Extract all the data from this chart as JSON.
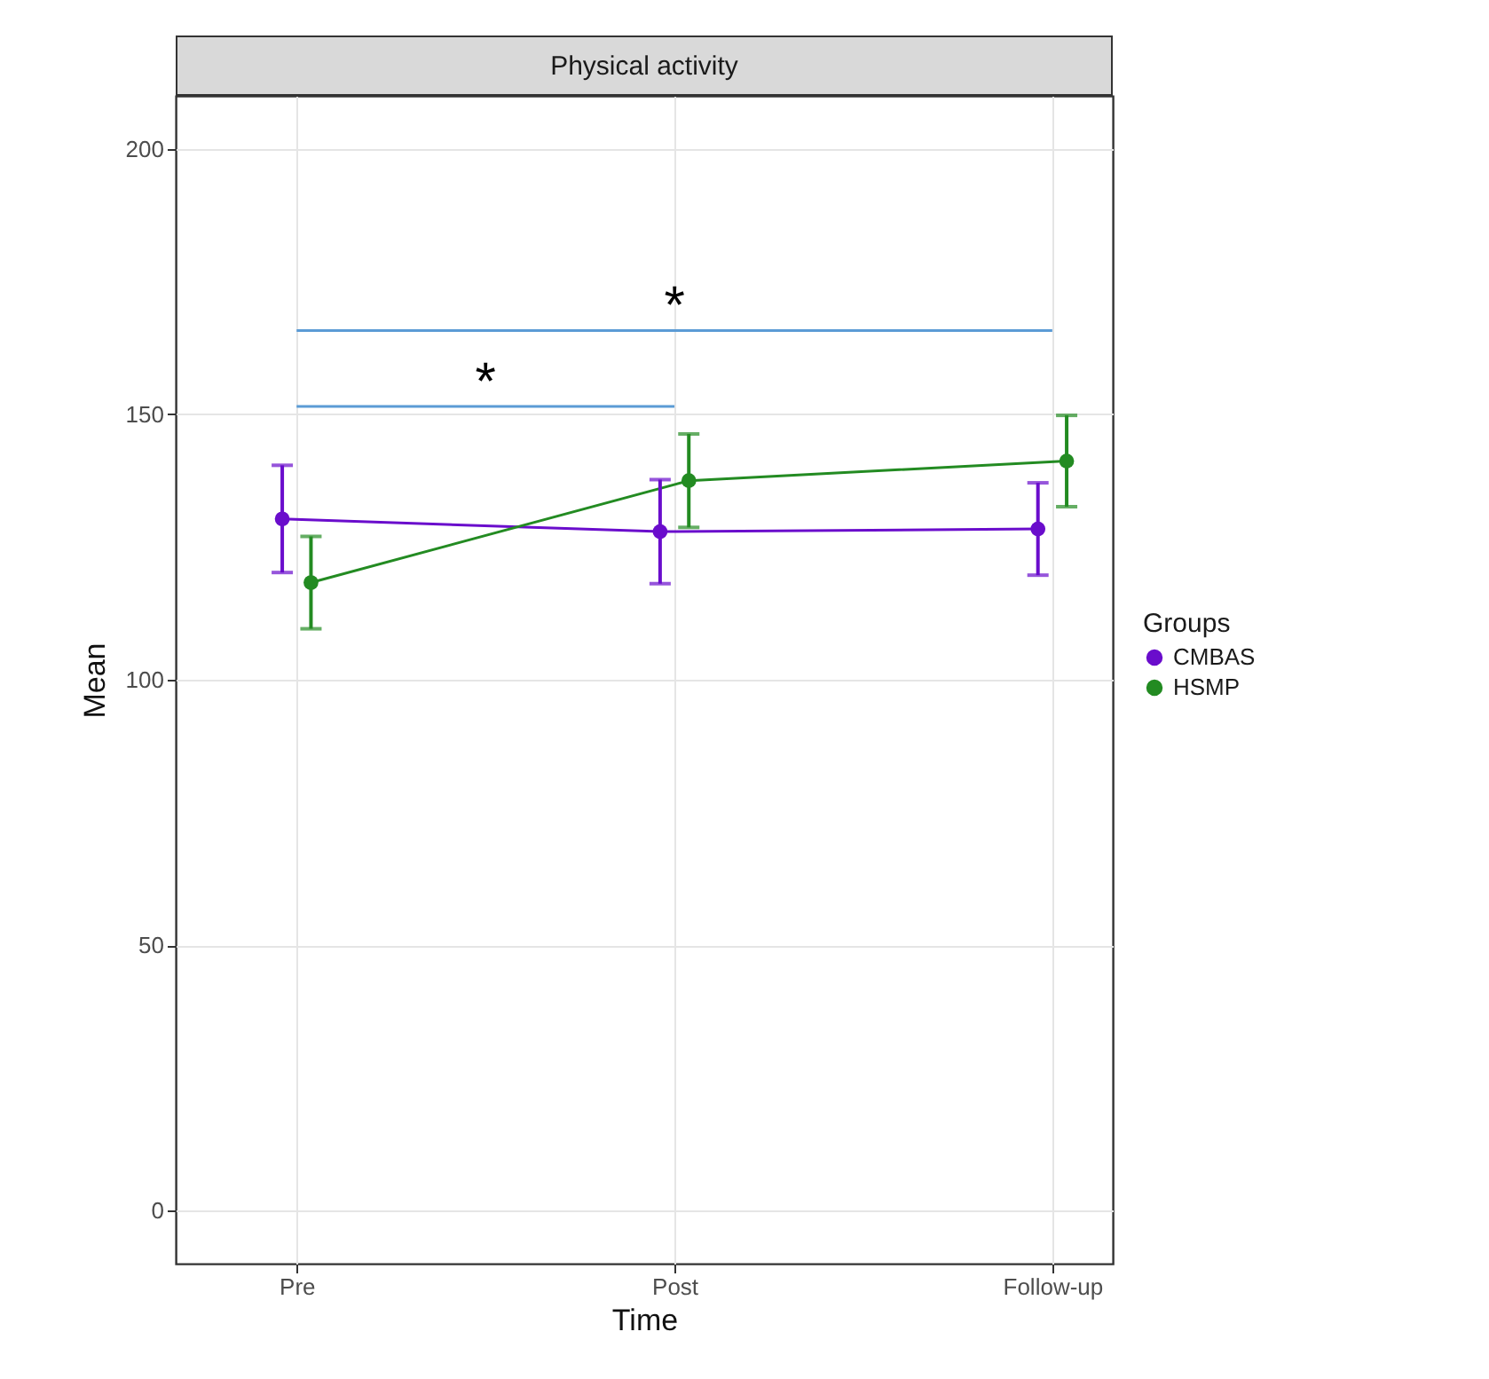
{
  "chart_data": {
    "type": "line",
    "title": "Physical activity",
    "xlabel": "Time",
    "ylabel": "Mean",
    "legend_title": "Groups",
    "categories": [
      "Pre",
      "Post",
      "Follow-up"
    ],
    "series": [
      {
        "name": "CMBAS",
        "color": "#6a0dcc",
        "values": [
          130.3,
          127.9,
          128.4
        ],
        "errors": [
          10.1,
          9.8,
          8.7
        ]
      },
      {
        "name": "HSMP",
        "color": "#238b22",
        "values": [
          118.3,
          137.5,
          141.2
        ],
        "errors": [
          8.7,
          8.8,
          8.6
        ]
      },
      {
        "color": "#5b9bd5",
        "marker": "none",
        "values": [
          165.8,
          165.8,
          165.8
        ]
      },
      {
        "color": "#5b9bd5",
        "marker": "none",
        "values": [
          151.5,
          151.5,
          null
        ]
      }
    ],
    "ylim": [
      -10,
      210
    ],
    "yticks": [
      0,
      50,
      100,
      150,
      200
    ],
    "grid": true,
    "legend": "right",
    "marker": "circle",
    "annotations": [
      "*",
      "*"
    ]
  }
}
